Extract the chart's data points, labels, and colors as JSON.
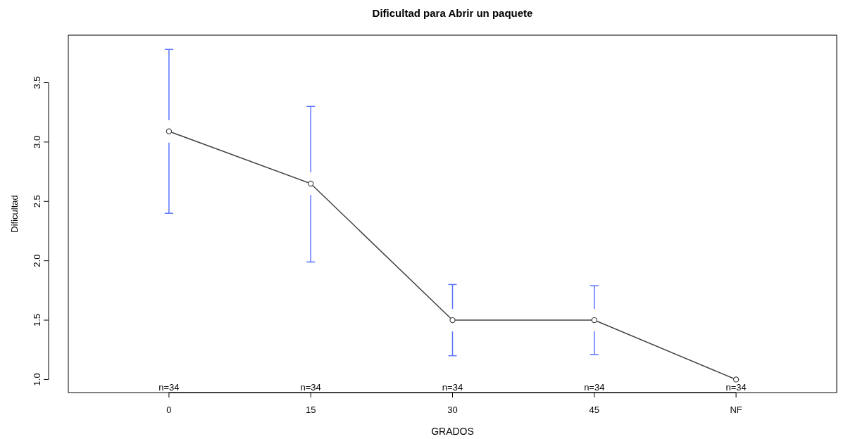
{
  "chart_data": {
    "type": "line",
    "title": "Dificultad para Abrir un paquete",
    "xlabel": "GRADOS",
    "ylabel": "Dificultad",
    "categories": [
      "0",
      "15",
      "30",
      "45",
      "NF"
    ],
    "series": [
      {
        "color": "#444444",
        "values": [
          3.09,
          2.65,
          1.5,
          1.5,
          1.0
        ],
        "errors": [
          [
            2.4,
            3.78
          ],
          [
            1.99,
            3.3
          ],
          [
            1.2,
            1.8
          ],
          [
            1.21,
            1.79
          ],
          null
        ]
      }
    ],
    "marker": "circle",
    "line_style": "solid",
    "grid": false,
    "ylim": [
      0.89,
      3.9
    ],
    "yticks": [
      {
        "value": 1,
        "label": "1.0"
      },
      {
        "value": 1.5,
        "label": "1.5"
      },
      {
        "value": 2,
        "label": "2.0"
      },
      {
        "value": 2.5,
        "label": "2.5"
      },
      {
        "value": 3,
        "label": "3.0"
      },
      {
        "value": 3.5,
        "label": "3.5"
      }
    ],
    "annotations": [
      "n=34",
      "n=34",
      "n=34",
      "n=34",
      "n=34"
    ]
  }
}
